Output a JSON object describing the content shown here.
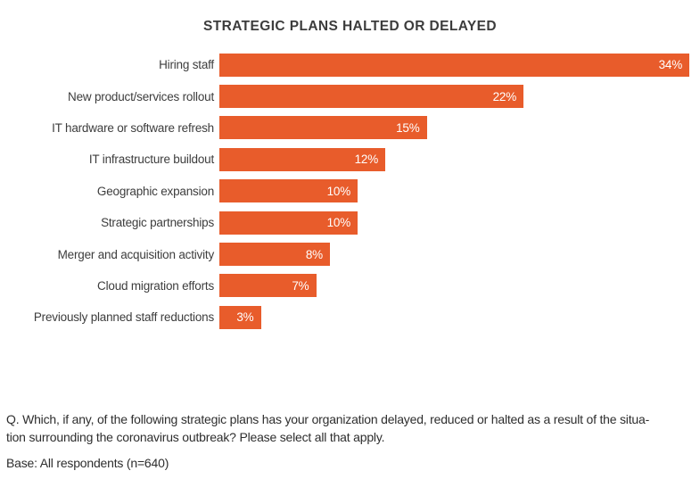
{
  "title": "STRATEGIC PLANS HALTED OR DELAYED",
  "chart_data": {
    "type": "bar",
    "orientation": "horizontal",
    "title": "STRATEGIC PLANS HALTED OR DELAYED",
    "categories": [
      "Hiring staff",
      "New product/services rollout",
      "IT hardware or software refresh",
      "IT infrastructure buildout",
      "Geographic expansion",
      "Strategic partnerships",
      "Merger and acquisition activity",
      "Cloud migration efforts",
      "Previously planned staff reductions"
    ],
    "values": [
      34,
      22,
      15,
      12,
      10,
      10,
      8,
      7,
      3
    ],
    "value_labels": [
      "34%",
      "22%",
      "15%",
      "12%",
      "10%",
      "10%",
      "8%",
      "7%",
      "3%"
    ],
    "xlabel": "",
    "ylabel": "",
    "xlim": [
      0,
      34.8
    ],
    "grid": false,
    "legend": false,
    "bar_color": "#E85C2B",
    "category_label_color": "#3D3D3D",
    "value_label_color": "#FFFFFF"
  },
  "footnote": {
    "question_lines": [
      "Q. Which, if any, of the following strategic plans has your organization delayed, reduced or halted as a result of the situa-",
      "tion surrounding the coronavirus outbreak? Please select all that apply."
    ],
    "base": "Base: All respondents (n=640)"
  }
}
